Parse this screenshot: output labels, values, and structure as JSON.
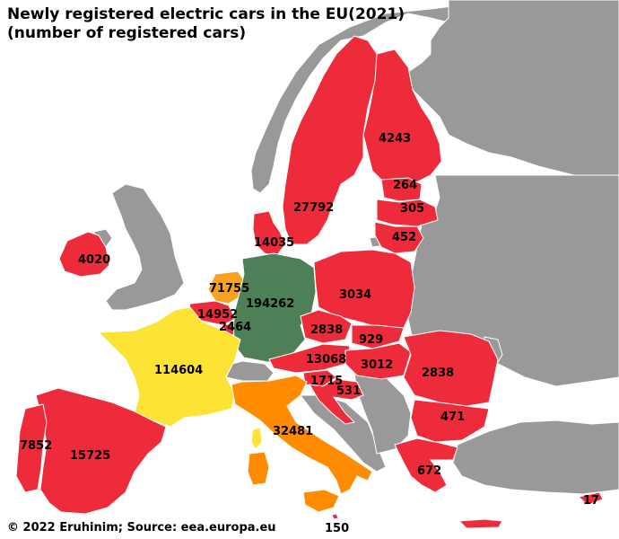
{
  "title_line1": "Newly registered electric cars in the EU(2021)",
  "title_line2": "(number of registered cars)",
  "credit": "© 2022 Eruhinim; Source: eea.europa.eu",
  "colors": {
    "sea": "#ffffff",
    "non_eu": "#999999",
    "border": "#ffffff",
    "top": "#4d8057",
    "second": "#fde333",
    "third": "#ff8c00",
    "mid": "#f7a31f",
    "low": "#ed2b3a"
  },
  "countries": {
    "finland": {
      "name": "Finland",
      "value": "4243"
    },
    "estonia": {
      "name": "Estonia",
      "value": "264"
    },
    "latvia": {
      "name": "Latvia",
      "value": "305"
    },
    "lithuania": {
      "name": "Lithuania",
      "value": "452"
    },
    "sweden": {
      "name": "Sweden",
      "value": "27792"
    },
    "denmark": {
      "name": "Denmark",
      "value": "14035"
    },
    "ireland": {
      "name": "Ireland",
      "value": "4020"
    },
    "netherlands": {
      "name": "Netherlands",
      "value": "71755"
    },
    "germany": {
      "name": "Germany",
      "value": "194262"
    },
    "belgium": {
      "name": "Belgium",
      "value": "14952"
    },
    "luxembourg": {
      "name": "Luxembourg",
      "value": "2464"
    },
    "poland": {
      "name": "Poland",
      "value": "3034"
    },
    "czechia": {
      "name": "Czechia",
      "value": "2838"
    },
    "slovakia": {
      "name": "Slovakia",
      "value": "929"
    },
    "austria": {
      "name": "Austria",
      "value": "13068"
    },
    "hungary": {
      "name": "Hungary",
      "value": "3012"
    },
    "romania": {
      "name": "Romania",
      "value": "2838"
    },
    "slovenia": {
      "name": "Slovenia",
      "value": "1715"
    },
    "croatia": {
      "name": "Croatia",
      "value": "531"
    },
    "france": {
      "name": "France",
      "value": "114604"
    },
    "italy": {
      "name": "Italy",
      "value": "32481"
    },
    "bulgaria": {
      "name": "Bulgaria",
      "value": "471"
    },
    "greece": {
      "name": "Greece",
      "value": "672"
    },
    "portugal": {
      "name": "Portugal",
      "value": "7852"
    },
    "spain": {
      "name": "Spain",
      "value": "15725"
    },
    "malta": {
      "name": "Malta",
      "value": "150"
    },
    "cyprus": {
      "name": "Cyprus",
      "value": "17"
    }
  }
}
